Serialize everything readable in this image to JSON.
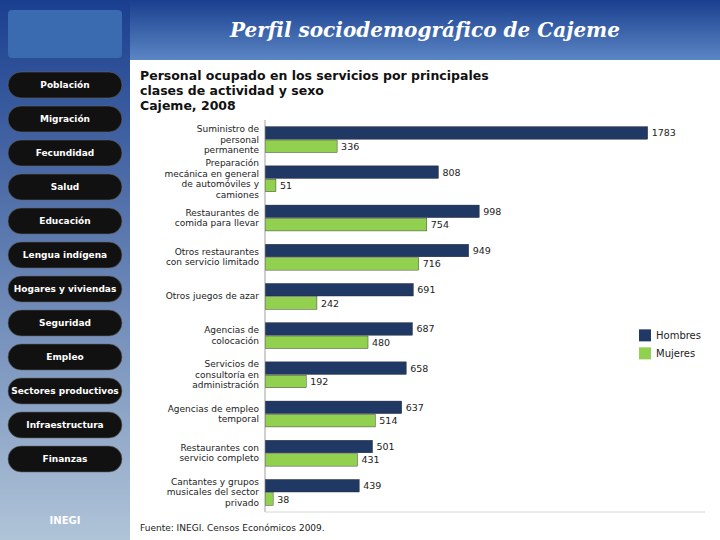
{
  "chart_data": {
    "type": "bar",
    "orientation": "horizontal",
    "title": "Personal ocupado en los servicios por principales\nclases de actividad y sexo\nCajeme, 2008",
    "categories": [
      "Suministro de\npersonal\npermanente",
      "Preparación\nmecánica en general\nde automóviles y\ncamiones",
      "Restaurantes de\ncomida para llevar",
      "Otros restaurantes\ncon servicio limitado",
      "Otros juegos de azar",
      "Agencias de\ncolocación",
      "Servicios de\nconsultoría en\nadministración",
      "Agencias de empleo\ntemporal",
      "Restaurantes con\nservicio completo",
      "Cantantes y grupos\nmusicales del sector\nprivado"
    ],
    "series": [
      {
        "name": "Hombres",
        "color": "#1F3864",
        "values": [
          1783,
          808,
          998,
          949,
          691,
          687,
          658,
          637,
          501,
          439
        ]
      },
      {
        "name": "Mujeres",
        "color": "#92D050",
        "values": [
          336,
          51,
          754,
          716,
          242,
          480,
          192,
          514,
          431,
          38
        ]
      }
    ],
    "xlim": [
      0,
      2050
    ],
    "data_labels": true,
    "tick_labels": "y",
    "legend": "right",
    "annotations": [
      "Fuente: INEGI. Censos Económicos 2009.",
      "Perfil sociodemográfico de Cajeme",
      "INEGI",
      "Población",
      "Migración",
      "Fecundidad",
      "Salud",
      "Educación",
      "Lengua indígena",
      "Hogares y viviendas",
      "Seguridad",
      "Empleo",
      "Sectores productivos",
      "Infraestructura",
      "Finanzas"
    ]
  }
}
